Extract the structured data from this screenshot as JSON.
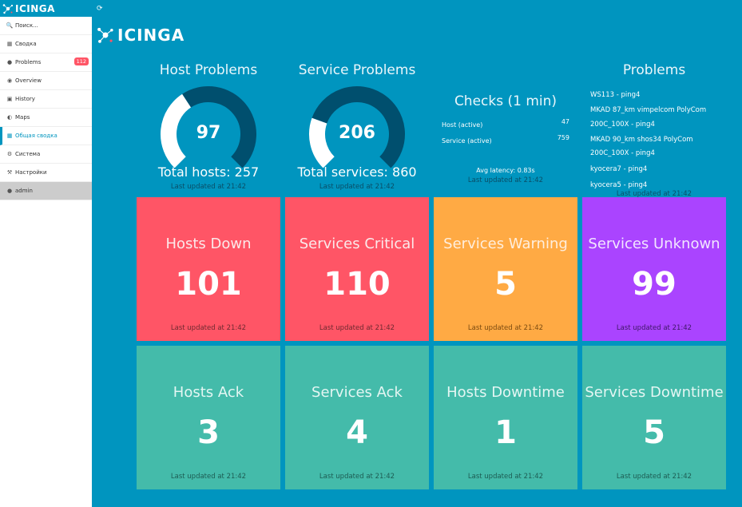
{
  "app": {
    "logo_text": "ICINGA"
  },
  "sidebar": {
    "items": [
      {
        "icon": "search-icon",
        "label": "Поиск..."
      },
      {
        "icon": "grid-icon",
        "label": "Сводка"
      },
      {
        "icon": "alert-icon",
        "label": "Problems",
        "badge": "112"
      },
      {
        "icon": "binoculars-icon",
        "label": "Overview"
      },
      {
        "icon": "history-icon",
        "label": "History"
      },
      {
        "icon": "globe-icon",
        "label": "Maps"
      },
      {
        "icon": "grid-icon",
        "label": "Общая сводка"
      },
      {
        "icon": "cogs-icon",
        "label": "Система"
      },
      {
        "icon": "wrench-icon",
        "label": "Настройки"
      },
      {
        "icon": "user-icon",
        "label": "admin"
      }
    ]
  },
  "host_problems": {
    "title": "Host Problems",
    "value": "97",
    "total": "Total hosts: 257",
    "fraction": 0.377,
    "updated": "Last updated at 21:42"
  },
  "service_problems": {
    "title": "Service Problems",
    "value": "206",
    "total": "Total services: 860",
    "fraction": 0.24,
    "updated": "Last updated at 21:42"
  },
  "checks": {
    "title": "Checks (1 min)",
    "host_label": "Host (active)",
    "host_value": "47",
    "service_label": "Service (active)",
    "service_value": "759",
    "latency": "Avg latency: 0.83s",
    "updated": "Last updated at 21:42"
  },
  "problems": {
    "title": "Problems",
    "items": [
      "WS113 - ping4",
      "MKAD 87_km vimpelcom PolyCom",
      "200C_100X - ping4",
      "MKAD 90_km shos34 PolyCom",
      "200C_100X - ping4",
      "kyocera7 - ping4",
      "kyocera5 - ping4"
    ],
    "updated": "Last updated at 21:42"
  },
  "tiles": [
    {
      "title": "Hosts Down",
      "value": "101",
      "updated": "Last updated at 21:42"
    },
    {
      "title": "Services Critical",
      "value": "110",
      "updated": "Last updated at 21:42"
    },
    {
      "title": "Services Warning",
      "value": "5",
      "updated": "Last updated at 21:42"
    },
    {
      "title": "Services Unknown",
      "value": "99",
      "updated": "Last updated at 21:42"
    },
    {
      "title": "Hosts Ack",
      "value": "3",
      "updated": "Last updated at 21:42"
    },
    {
      "title": "Services Ack",
      "value": "4",
      "updated": "Last updated at 21:42"
    },
    {
      "title": "Hosts Downtime",
      "value": "1",
      "updated": "Last updated at 21:42"
    },
    {
      "title": "Services Downtime",
      "value": "5",
      "updated": "Last updated at 21:42"
    }
  ],
  "colors": {
    "background": "#0095bf",
    "down": "#ff5566",
    "warning": "#ffaa44",
    "unknown": "#aa44ff",
    "ok": "#44bbaa",
    "gauge_dark": "#004f6e",
    "gauge_light": "#ffffff"
  }
}
